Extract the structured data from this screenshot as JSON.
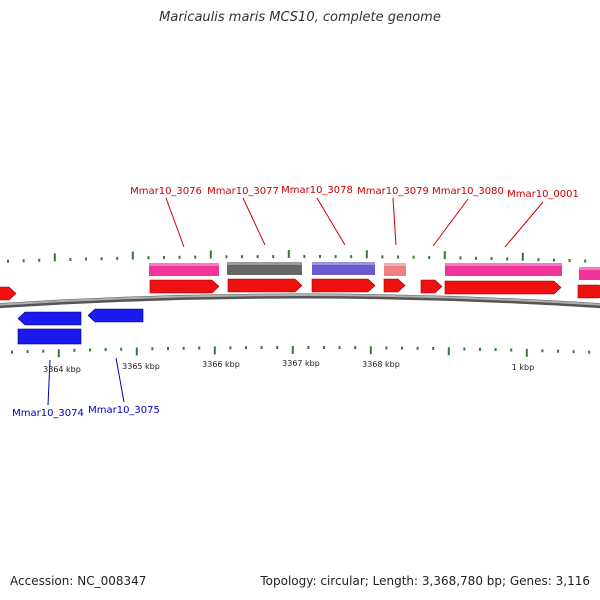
{
  "title": "Maricaulis maris MCS10, complete genome",
  "footer": {
    "accession": "Accession: NC_008347",
    "summary": "Topology: circular; Length: 3,368,780 bp; Genes: 3,116"
  },
  "colors": {
    "forward_label": "#cc0000",
    "reverse_label": "#0000bb",
    "tick": "#2e7d32",
    "backbone": "#8a8a8a",
    "cds_forward": "#ee1111",
    "cds_reverse": "#1a1aee",
    "gene_pink": "#f0349a",
    "gene_gray": "#666666",
    "gene_purple": "#6a5acd",
    "gene_salmon": "#f08080"
  },
  "scale_labels": [
    "3364 kbp",
    "3365 kbp",
    "3366 kbp",
    "3367 kbp",
    "3368 kbp",
    "1 kbp"
  ],
  "genes": [
    {
      "label": "Mmar10_3076",
      "strand": "forward",
      "feature": "pink"
    },
    {
      "label": "Mmar10_3077",
      "strand": "forward",
      "feature": "gray"
    },
    {
      "label": "Mmar10_3078",
      "strand": "forward",
      "feature": "purple"
    },
    {
      "label": "Mmar10_3079",
      "strand": "forward",
      "feature": "salmon"
    },
    {
      "label": "Mmar10_3080",
      "strand": "forward",
      "feature": "none"
    },
    {
      "label": "Mmar10_0001",
      "strand": "forward",
      "feature": "pink"
    },
    {
      "label": "Mmar10_3074",
      "strand": "reverse",
      "feature": "none"
    },
    {
      "label": "Mmar10_3075",
      "strand": "reverse",
      "feature": "none"
    }
  ]
}
